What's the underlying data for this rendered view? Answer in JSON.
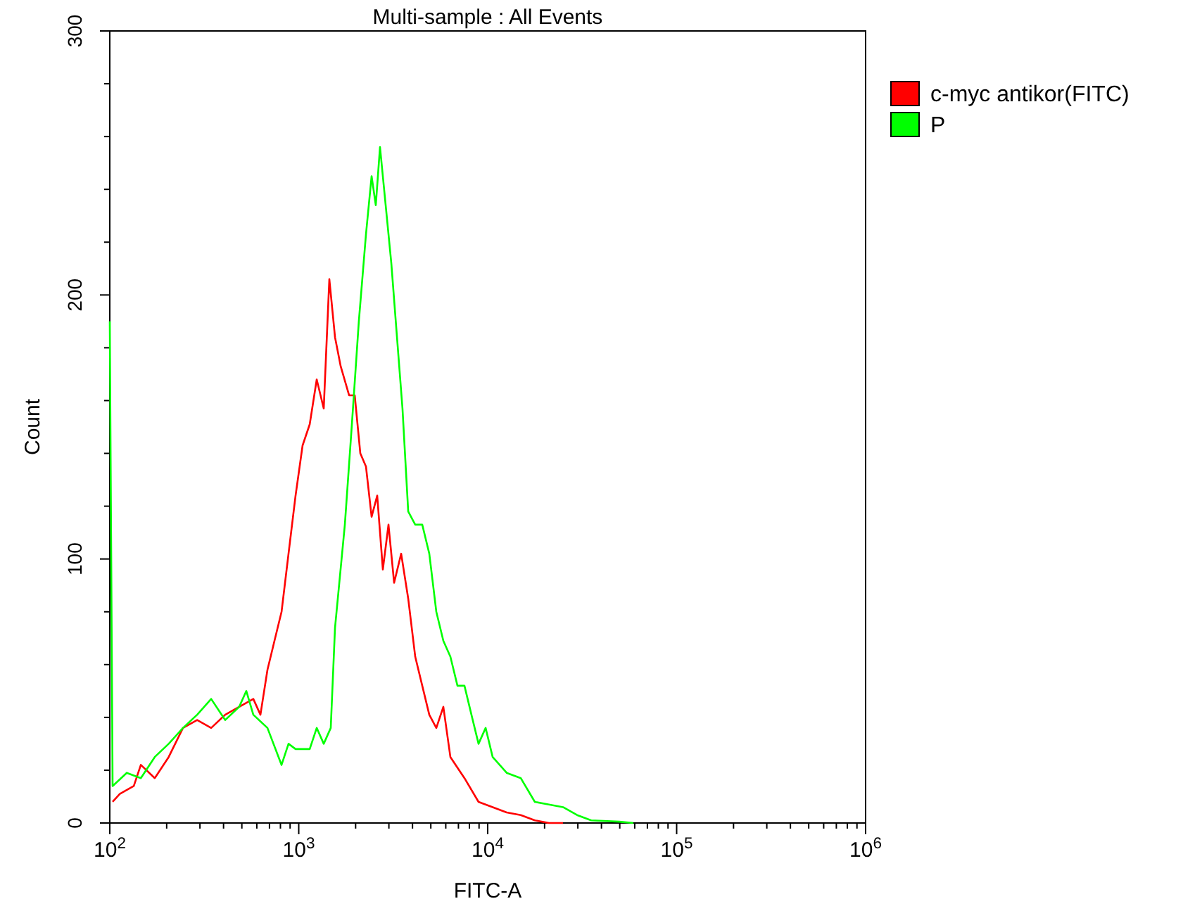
{
  "chart_data": {
    "type": "line",
    "title": "Multi-sample : All Events",
    "xlabel": "FITC-A",
    "ylabel": "Count",
    "log": "x",
    "grid": false,
    "legend": "top right",
    "marker": "none",
    "line_style": "solid",
    "xlim": [
      100,
      1000000
    ],
    "ylim": [
      0,
      300
    ],
    "xticks": [
      {
        "value": 100,
        "label": "10$^{2}$"
      },
      {
        "value": 200,
        "label": null
      },
      {
        "value": 300,
        "label": null
      },
      {
        "value": 400,
        "label": null
      },
      {
        "value": 500,
        "label": null
      },
      {
        "value": 600,
        "label": null
      },
      {
        "value": 700,
        "label": null
      },
      {
        "value": 800,
        "label": null
      },
      {
        "value": 900,
        "label": null
      },
      {
        "value": 1000,
        "label": "10$^{3}$"
      },
      {
        "value": 2000,
        "label": null
      },
      {
        "value": 3000,
        "label": null
      },
      {
        "value": 4000,
        "label": null
      },
      {
        "value": 5000,
        "label": null
      },
      {
        "value": 6000,
        "label": null
      },
      {
        "value": 7000,
        "label": null
      },
      {
        "value": 8000,
        "label": null
      },
      {
        "value": 9000,
        "label": null
      },
      {
        "value": 10000,
        "label": "10$^{4}$"
      },
      {
        "value": 20000,
        "label": null
      },
      {
        "value": 30000,
        "label": null
      },
      {
        "value": 40000,
        "label": null
      },
      {
        "value": 50000,
        "label": null
      },
      {
        "value": 60000,
        "label": null
      },
      {
        "value": 70000,
        "label": null
      },
      {
        "value": 80000,
        "label": null
      },
      {
        "value": 90000,
        "label": null
      },
      {
        "value": 100000,
        "label": "10$^{5}$"
      },
      {
        "value": 200000,
        "label": null
      },
      {
        "value": 300000,
        "label": null
      },
      {
        "value": 400000,
        "label": null
      },
      {
        "value": 500000,
        "label": null
      },
      {
        "value": 600000,
        "label": null
      },
      {
        "value": 700000,
        "label": null
      },
      {
        "value": 800000,
        "label": null
      },
      {
        "value": 900000,
        "label": null
      },
      {
        "value": 1000000,
        "label": "10$^{6}$"
      }
    ],
    "yticks": [
      0,
      {
        "value": 20,
        "label": null
      },
      {
        "value": 40,
        "label": null
      },
      {
        "value": 60,
        "label": null
      },
      {
        "value": 80,
        "label": null
      },
      100,
      {
        "value": 120,
        "label": null
      },
      {
        "value": 140,
        "label": null
      },
      {
        "value": 160,
        "label": null
      },
      {
        "value": 180,
        "label": null
      },
      200,
      {
        "value": 220,
        "label": null
      },
      {
        "value": 240,
        "label": null
      },
      {
        "value": 260,
        "label": null
      },
      {
        "value": 280,
        "label": null
      },
      300
    ],
    "series": [
      {
        "name": "c-myc antikor(FITC)",
        "color": "#ff0000",
        "x": [
          103.5,
          113,
          134,
          146,
          173,
          205,
          244,
          290,
          344,
          408,
          484,
          575,
          627,
          683,
          744,
          811,
          883,
          962,
          1048,
          1143,
          1245,
          1356,
          1452,
          1556,
          1667,
          1847,
          1978,
          2118,
          2269,
          2430,
          2602,
          2787,
          2985,
          3197,
          3484,
          3796,
          4135,
          4505,
          4908,
          5347,
          5825,
          6346,
          7534,
          8944,
          10620,
          12600,
          14960,
          17760,
          21090,
          25040
        ],
        "values": [
          8,
          11,
          14,
          22,
          17,
          25,
          36,
          39,
          36,
          41,
          44,
          47,
          41,
          58,
          69,
          80,
          102,
          124,
          143,
          151,
          168,
          157,
          206,
          184,
          173,
          162,
          162,
          140,
          135,
          116,
          124,
          96,
          113,
          91,
          102,
          85,
          63,
          52,
          41,
          36,
          44,
          25,
          17,
          8,
          6,
          4,
          3,
          1,
          0,
          0
        ]
      },
      {
        "name": "P",
        "color": "#00ff00",
        "x": [
          100,
          103.5,
          123,
          146,
          173,
          205,
          244,
          290,
          344,
          408,
          484,
          528,
          575,
          683,
          811,
          883,
          962,
          1143,
          1245,
          1356,
          1477,
          1556,
          1754,
          1911,
          2080,
          2269,
          2430,
          2557,
          2692,
          2884,
          3090,
          3311,
          3540,
          3796,
          4135,
          4505,
          4908,
          5347,
          5825,
          6346,
          6918,
          7534,
          8204,
          8944,
          9750,
          10620,
          12600,
          14960,
          17760,
          21090,
          25040,
          29720,
          35300,
          49700,
          59000
        ],
        "values": [
          190,
          14,
          19,
          17,
          25,
          30,
          36,
          41,
          47,
          39,
          44,
          50,
          41,
          36,
          22,
          30,
          28,
          28,
          36,
          30,
          36,
          74,
          113,
          151,
          190,
          223,
          245,
          234,
          256,
          234,
          212,
          184,
          157,
          118,
          113,
          113,
          102,
          80,
          69,
          63,
          52,
          52,
          41,
          30,
          36,
          25,
          19,
          17,
          8,
          7,
          6,
          3,
          1,
          0.5,
          0
        ]
      }
    ]
  }
}
